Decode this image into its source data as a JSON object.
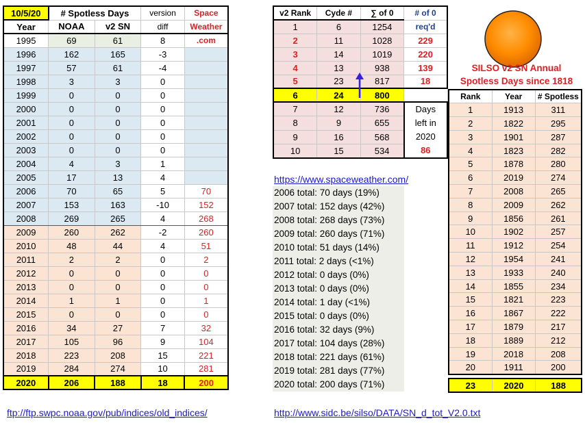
{
  "left_table": {
    "date": "10/5/20",
    "header_group": "# Spotless Days",
    "version_label": "version",
    "space_label": "Space",
    "columns": [
      "Year",
      "NOAA",
      "v2 SN",
      "diff",
      "Weather"
    ],
    "space_com": ".com",
    "rows": [
      [
        "1995",
        "69",
        "61",
        "8",
        ""
      ],
      [
        "1996",
        "162",
        "165",
        "-3",
        ""
      ],
      [
        "1997",
        "57",
        "61",
        "-4",
        ""
      ],
      [
        "1998",
        "3",
        "3",
        "0",
        ""
      ],
      [
        "1999",
        "0",
        "0",
        "0",
        ""
      ],
      [
        "2000",
        "0",
        "0",
        "0",
        ""
      ],
      [
        "2001",
        "0",
        "0",
        "0",
        ""
      ],
      [
        "2002",
        "0",
        "0",
        "0",
        ""
      ],
      [
        "2003",
        "0",
        "0",
        "0",
        ""
      ],
      [
        "2004",
        "4",
        "3",
        "1",
        ""
      ],
      [
        "2005",
        "17",
        "13",
        "4",
        ""
      ],
      [
        "2006",
        "70",
        "65",
        "5",
        "70"
      ],
      [
        "2007",
        "153",
        "163",
        "-10",
        "152"
      ],
      [
        "2008",
        "269",
        "265",
        "4",
        "268"
      ],
      [
        "2009",
        "260",
        "262",
        "-2",
        "260"
      ],
      [
        "2010",
        "48",
        "44",
        "4",
        "51"
      ],
      [
        "2011",
        "2",
        "2",
        "0",
        "2"
      ],
      [
        "2012",
        "0",
        "0",
        "0",
        "0"
      ],
      [
        "2013",
        "0",
        "0",
        "0",
        "0"
      ],
      [
        "2014",
        "1",
        "1",
        "0",
        "1"
      ],
      [
        "2015",
        "0",
        "0",
        "0",
        "0"
      ],
      [
        "2016",
        "34",
        "27",
        "7",
        "32"
      ],
      [
        "2017",
        "105",
        "96",
        "9",
        "104"
      ],
      [
        "2018",
        "223",
        "208",
        "15",
        "221"
      ],
      [
        "2019",
        "284",
        "274",
        "10",
        "281"
      ]
    ],
    "total_row": [
      "2020",
      "206",
      "188",
      "18",
      "200"
    ]
  },
  "rank_table": {
    "columns": [
      "v2 Rank",
      "Cyde #",
      "∑ of 0",
      "# of 0"
    ],
    "reqd_label": "req'd",
    "rows": [
      [
        "1",
        "6",
        "1254",
        ""
      ],
      [
        "2",
        "11",
        "1028",
        "229"
      ],
      [
        "3",
        "14",
        "1019",
        "220"
      ],
      [
        "4",
        "13",
        "938",
        "139"
      ],
      [
        "5",
        "23",
        "817",
        "18"
      ],
      [
        "6",
        "24",
        "800",
        ""
      ],
      [
        "7",
        "12",
        "736",
        ""
      ],
      [
        "8",
        "9",
        "655",
        ""
      ],
      [
        "9",
        "16",
        "568",
        ""
      ],
      [
        "10",
        "15",
        "534",
        ""
      ]
    ],
    "days_left_lines": [
      "Days",
      "left in",
      "2020"
    ],
    "days_left_value": "86"
  },
  "silso": {
    "title_line1": "SILSO v2 SN Annual",
    "title_line2": "Spotless Days since 1818",
    "columns": [
      "Rank",
      "Year",
      "# Spotless"
    ],
    "rows": [
      [
        "1",
        "1913",
        "311"
      ],
      [
        "2",
        "1822",
        "295"
      ],
      [
        "3",
        "1901",
        "287"
      ],
      [
        "4",
        "1823",
        "282"
      ],
      [
        "5",
        "1878",
        "280"
      ],
      [
        "6",
        "2019",
        "274"
      ],
      [
        "7",
        "2008",
        "265"
      ],
      [
        "8",
        "2009",
        "262"
      ],
      [
        "9",
        "1856",
        "261"
      ],
      [
        "10",
        "1902",
        "257"
      ],
      [
        "11",
        "1912",
        "254"
      ],
      [
        "12",
        "1954",
        "241"
      ],
      [
        "13",
        "1933",
        "240"
      ],
      [
        "14",
        "1855",
        "234"
      ],
      [
        "15",
        "1821",
        "223"
      ],
      [
        "16",
        "1867",
        "222"
      ],
      [
        "17",
        "1879",
        "217"
      ],
      [
        "18",
        "1889",
        "212"
      ],
      [
        "19",
        "2018",
        "208"
      ],
      [
        "20",
        "1911",
        "200"
      ]
    ],
    "current": [
      "23",
      "2020",
      "188"
    ]
  },
  "links": {
    "spaceweather": "https://www.spaceweather.com/",
    "noaa": "ftp://ftp.swpc.noaa.gov/pub/indices/old_indices/",
    "sidc": "http://www.sidc.be/silso/DATA/SN_d_tot_V2.0.txt"
  },
  "totals": [
    "2006 total: 70 days (19%)",
    "2007 total: 152 days (42%)",
    "2008 total: 268 days (73%)",
    "2009 total: 260 days (71%)",
    "2010 total: 51 days (14%)",
    "2011 total: 2 days (<1%)",
    "2012 total: 0 days (0%)",
    "2013 total: 0 days (0%)",
    "2014 total: 1 day (<1%)",
    "2015 total: 0 days (0%)",
    "2016 total: 32 days (9%)",
    "2017 total: 104 days (28%)",
    "2018 total: 221 days (61%)",
    "2019 total: 281 days (77%)",
    "2020 total: 200 days (71%)"
  ],
  "colors": {
    "accent_red": "#e02020",
    "highlight": "#ffff00",
    "blue_bg": "#dbe9f3",
    "orange_bg": "#fbe4d4",
    "pink_bg": "#f4dede",
    "arrow": "#3a1ee0"
  },
  "icons": {
    "sun": "sun-icon",
    "arrow": "up-arrow-icon"
  }
}
